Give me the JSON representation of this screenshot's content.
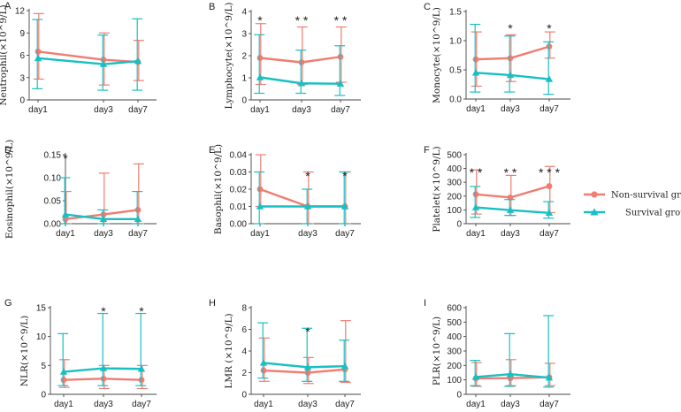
{
  "colors": {
    "non_survival": "#ef7d72",
    "survival": "#19bfc3",
    "axis": "#444444"
  },
  "legend": {
    "position": "right",
    "entries": [
      {
        "label": "Non-survival group",
        "color": "#ef7d72",
        "marker": "circle"
      },
      {
        "label": "Survival group",
        "color": "#19bfc3",
        "marker": "triangle"
      }
    ]
  },
  "chart_data": [
    {
      "panel": "A",
      "type": "line",
      "categories": [
        "day1",
        "day3",
        "day7"
      ],
      "ylabel": "Neutrophil(×10^9/L)",
      "ylim": [
        0,
        12
      ],
      "yticks": [
        0,
        3,
        6,
        9,
        12
      ],
      "tick_labels": [
        "0",
        "3",
        "6",
        "9",
        "12"
      ],
      "series": [
        {
          "name": "Non-survival group",
          "values": [
            6.5,
            5.4,
            5.1
          ],
          "err_low": [
            2.8,
            2.0,
            2.6
          ],
          "err_high": [
            11.6,
            9.0,
            8.0
          ]
        },
        {
          "name": "Survival group",
          "values": [
            5.6,
            4.8,
            5.2
          ],
          "err_low": [
            1.5,
            1.3,
            1.3
          ],
          "err_high": [
            10.8,
            8.7,
            10.9
          ]
        }
      ],
      "annotations": []
    },
    {
      "panel": "B",
      "type": "line",
      "categories": [
        "day1",
        "day3",
        "day7"
      ],
      "ylabel": "Lymphocyte(×10^9/L)",
      "ylim": [
        0,
        4
      ],
      "yticks": [
        0,
        1,
        2,
        3,
        4
      ],
      "tick_labels": [
        "0",
        "1",
        "2",
        "3",
        "4"
      ],
      "series": [
        {
          "name": "Non-survival group",
          "values": [
            1.9,
            1.7,
            1.95
          ],
          "err_low": [
            0.7,
            0.7,
            0.8
          ],
          "err_high": [
            3.45,
            3.3,
            3.3
          ]
        },
        {
          "name": "Survival group",
          "values": [
            1.02,
            0.75,
            0.73
          ],
          "err_low": [
            0.3,
            0.3,
            0.2
          ],
          "err_high": [
            2.95,
            2.25,
            2.45
          ]
        }
      ],
      "annotations": [
        "*",
        "* *",
        "* *"
      ]
    },
    {
      "panel": "C",
      "type": "line",
      "categories": [
        "day1",
        "day3",
        "day7"
      ],
      "ylabel": "Monocyte(×10^9/L)",
      "ylim": [
        0,
        1.5
      ],
      "yticks": [
        0,
        0.5,
        1.0,
        1.5
      ],
      "tick_labels": [
        "0.0",
        "0.5",
        "1.0",
        "1.5"
      ],
      "series": [
        {
          "name": "Non-survival group",
          "values": [
            0.68,
            0.7,
            0.9
          ],
          "err_low": [
            0.22,
            0.3,
            0.7
          ],
          "err_high": [
            1.15,
            1.1,
            1.15
          ]
        },
        {
          "name": "Survival group",
          "values": [
            0.45,
            0.41,
            0.34
          ],
          "err_low": [
            0.12,
            0.12,
            0.08
          ],
          "err_high": [
            1.28,
            1.08,
            0.98
          ]
        }
      ],
      "annotations": [
        "",
        "*",
        "*"
      ]
    },
    {
      "panel": "D",
      "type": "line",
      "categories": [
        "day1",
        "day3",
        "day7"
      ],
      "ylabel": "Eosinophil(×10^9/L)",
      "ylim": [
        0,
        0.15
      ],
      "yticks": [
        0,
        0.05,
        0.1,
        0.15
      ],
      "tick_labels": [
        "0.00",
        "0.05",
        "0.10",
        "0.15"
      ],
      "series": [
        {
          "name": "Non-survival group",
          "values": [
            0.01,
            0.02,
            0.03
          ],
          "err_low": [
            0.0,
            0.0,
            0.0
          ],
          "err_high": [
            0.07,
            0.11,
            0.13
          ]
        },
        {
          "name": "Survival group",
          "values": [
            0.02,
            0.01,
            0.01
          ],
          "err_low": [
            0.0,
            0.0,
            0.0
          ],
          "err_high": [
            0.1,
            0.03,
            0.07
          ]
        }
      ],
      "annotations": [
        "*",
        "",
        ""
      ]
    },
    {
      "panel": "E",
      "type": "line",
      "categories": [
        "day1",
        "day3",
        "day7"
      ],
      "ylabel": "Basophil(×10^9/L)",
      "ylim": [
        0,
        0.04
      ],
      "yticks": [
        0,
        0.01,
        0.02,
        0.03,
        0.04
      ],
      "tick_labels": [
        "0.00",
        "0.01",
        "0.02",
        "0.03",
        "0.04"
      ],
      "series": [
        {
          "name": "Non-survival group",
          "values": [
            0.02,
            0.01,
            0.01
          ],
          "err_low": [
            0.01,
            0.0,
            0.0
          ],
          "err_high": [
            0.04,
            0.03,
            0.03
          ]
        },
        {
          "name": "Survival group",
          "values": [
            0.01,
            0.01,
            0.01
          ],
          "err_low": [
            0.0,
            0.0,
            0.0
          ],
          "err_high": [
            0.03,
            0.02,
            0.03
          ]
        }
      ],
      "annotations": [
        "",
        "*",
        "*"
      ]
    },
    {
      "panel": "F",
      "type": "line",
      "categories": [
        "day1",
        "day3",
        "day7"
      ],
      "ylabel": "Platelet(×10^9/L)",
      "ylim": [
        0,
        500
      ],
      "yticks": [
        0,
        100,
        200,
        300,
        400,
        500
      ],
      "tick_labels": [
        "0",
        "100",
        "200",
        "300",
        "400",
        "500"
      ],
      "series": [
        {
          "name": "Non-survival group",
          "values": [
            213,
            190,
            272
          ],
          "err_low": [
            70,
            60,
            80
          ],
          "err_high": [
            390,
            350,
            415
          ]
        },
        {
          "name": "Survival group",
          "values": [
            118,
            98,
            78
          ],
          "err_low": [
            45,
            60,
            40
          ],
          "err_high": [
            270,
            175,
            160
          ]
        }
      ],
      "annotations": [
        "* *",
        "* *",
        "* * *"
      ]
    },
    {
      "panel": "G",
      "type": "line",
      "categories": [
        "day1",
        "day3",
        "day7"
      ],
      "ylabel": "NLR(×10^9/L)",
      "ylim": [
        0,
        15
      ],
      "yticks": [
        0,
        5,
        10,
        15
      ],
      "tick_labels": [
        "0",
        "5",
        "10",
        "15"
      ],
      "series": [
        {
          "name": "Non-survival group",
          "values": [
            2.5,
            2.7,
            2.5
          ],
          "err_low": [
            1.2,
            1.0,
            1.0
          ],
          "err_high": [
            6.0,
            5.0,
            5.0
          ]
        },
        {
          "name": "Survival group",
          "values": [
            3.9,
            4.5,
            4.4
          ],
          "err_low": [
            1.5,
            1.5,
            1.5
          ],
          "err_high": [
            10.5,
            14.0,
            14.0
          ]
        }
      ],
      "annotations": [
        "",
        "*",
        "*"
      ]
    },
    {
      "panel": "H",
      "type": "line",
      "categories": [
        "day1",
        "day3",
        "day7"
      ],
      "ylabel": "LMR (×10^9/L)",
      "ylim": [
        0,
        8
      ],
      "yticks": [
        0,
        2,
        4,
        6,
        8
      ],
      "tick_labels": [
        "0",
        "2",
        "4",
        "6",
        "8"
      ],
      "series": [
        {
          "name": "Non-survival group",
          "values": [
            2.2,
            2.0,
            2.3
          ],
          "err_low": [
            1.2,
            1.0,
            1.1
          ],
          "err_high": [
            5.2,
            3.4,
            6.8
          ]
        },
        {
          "name": "Survival group",
          "values": [
            2.9,
            2.5,
            2.6
          ],
          "err_low": [
            1.5,
            1.2,
            1.2
          ],
          "err_high": [
            6.6,
            6.1,
            5.0
          ]
        }
      ],
      "annotations": [
        "",
        "*",
        ""
      ]
    },
    {
      "panel": "I",
      "type": "line",
      "categories": [
        "day1",
        "day3",
        "day7"
      ],
      "ylabel": "PLR(×10^9/L)",
      "ylim": [
        0,
        600
      ],
      "yticks": [
        0,
        100,
        200,
        300,
        400,
        500,
        600
      ],
      "tick_labels": [
        "0",
        "100",
        "200",
        "300",
        "400",
        "500",
        "600"
      ],
      "series": [
        {
          "name": "Non-survival group",
          "values": [
            110,
            112,
            118
          ],
          "err_low": [
            55,
            60,
            60
          ],
          "err_high": [
            220,
            240,
            215
          ]
        },
        {
          "name": "Survival group",
          "values": [
            120,
            140,
            115
          ],
          "err_low": [
            60,
            55,
            50
          ],
          "err_high": [
            235,
            420,
            545
          ]
        }
      ],
      "annotations": []
    }
  ]
}
